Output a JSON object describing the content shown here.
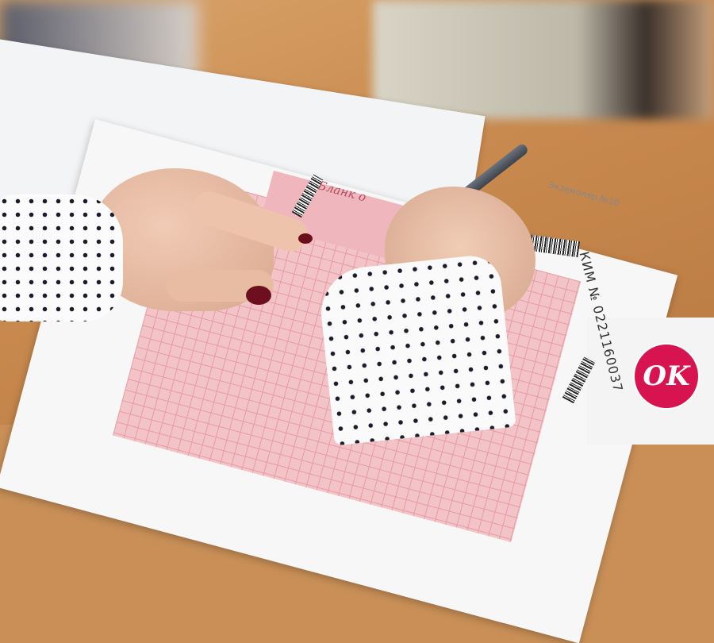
{
  "photo": {
    "form_title": "Бланк о",
    "kim_number": "КИМ № 0221160037",
    "copy_label": "Экземпляр №10"
  },
  "logo": {
    "text": "OK",
    "color": "#d7144f"
  }
}
